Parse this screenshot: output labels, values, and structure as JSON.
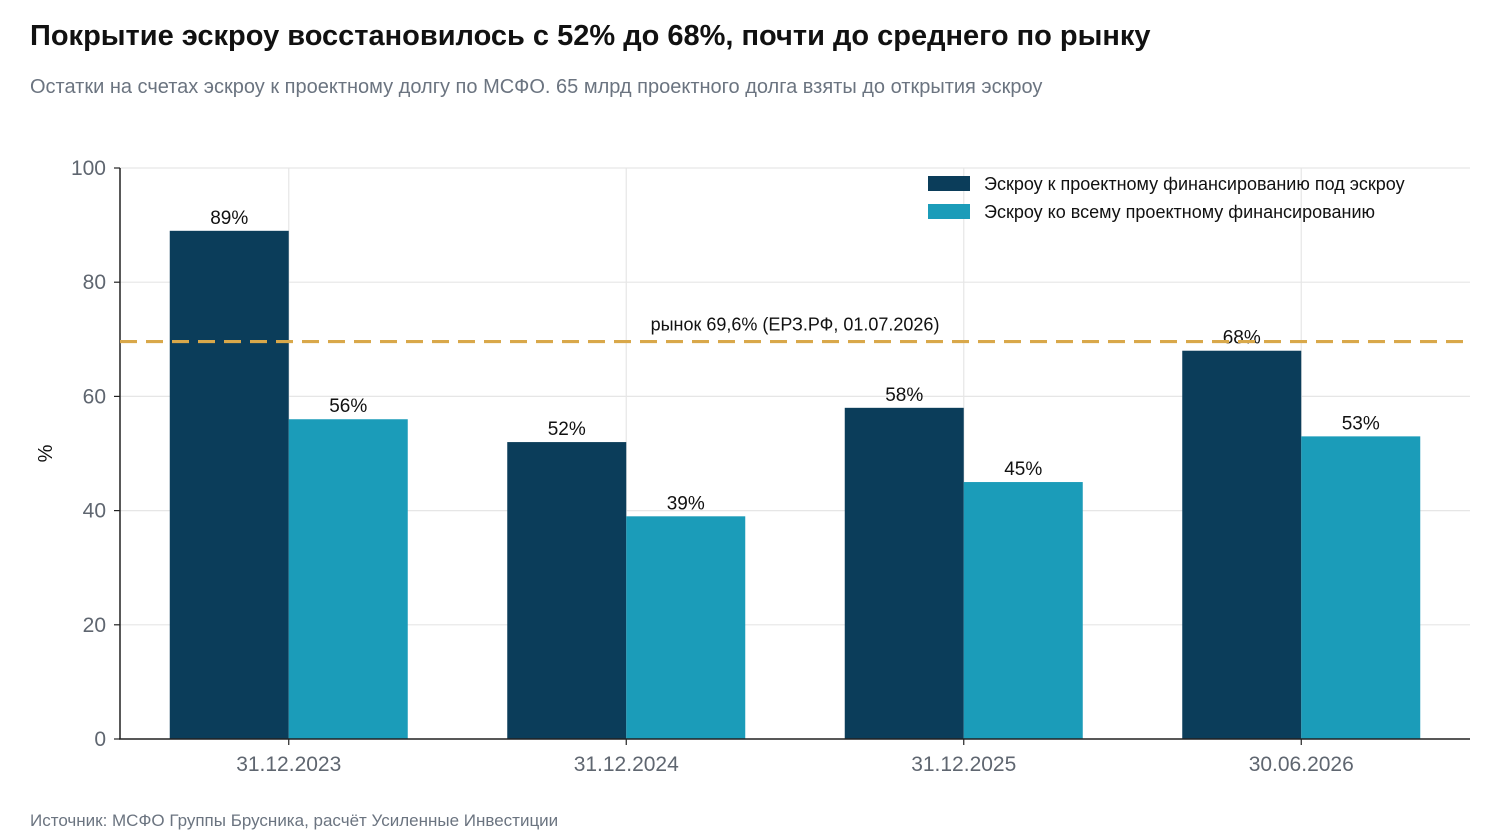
{
  "header": {
    "title": "Покрытие эскроу восстановилось с 52% до 68%, почти до среднего по рынку",
    "subtitle": "Остатки на счетах эскроу к проектному долгу по МСФО. 65 млрд проектного долга взяты до открытия эскроу"
  },
  "footer": {
    "source": "Источник: МСФО Группы Брусника, расчёт Усиленные Инвестиции"
  },
  "chart_data": {
    "type": "bar",
    "title": "Покрытие эскроу восстановилось с 52% до 68%, почти до среднего по рынку",
    "subtitle": "Остатки на счетах эскроу к проектному долгу по МСФО. 65 млрд проектного долга взяты до открытия эскроу",
    "xlabel": "",
    "ylabel": "%",
    "ylim": [
      0,
      100
    ],
    "yticks": [
      0,
      20,
      40,
      60,
      80,
      100
    ],
    "grid": true,
    "legend_position": "top-right",
    "categories": [
      "31.12.2023",
      "31.12.2024",
      "31.12.2025",
      "30.06.2026"
    ],
    "series": [
      {
        "name": "Эскроу к проектному финансированию под эскроу",
        "color": "#0b3d5a",
        "values": [
          89,
          52,
          58,
          68
        ],
        "labels": [
          "89%",
          "52%",
          "58%",
          "68%"
        ]
      },
      {
        "name": "Эскроу ко всему проектному финансированию",
        "color": "#1b9cb9",
        "values": [
          56,
          39,
          45,
          53
        ],
        "labels": [
          "56%",
          "39%",
          "45%",
          "53%"
        ]
      }
    ],
    "reference_line": {
      "value": 69.6,
      "label": "рынок 69,6% (ЕРЗ.РФ, 01.07.2026)",
      "color": "#d9a84a",
      "style": "dashed"
    }
  }
}
